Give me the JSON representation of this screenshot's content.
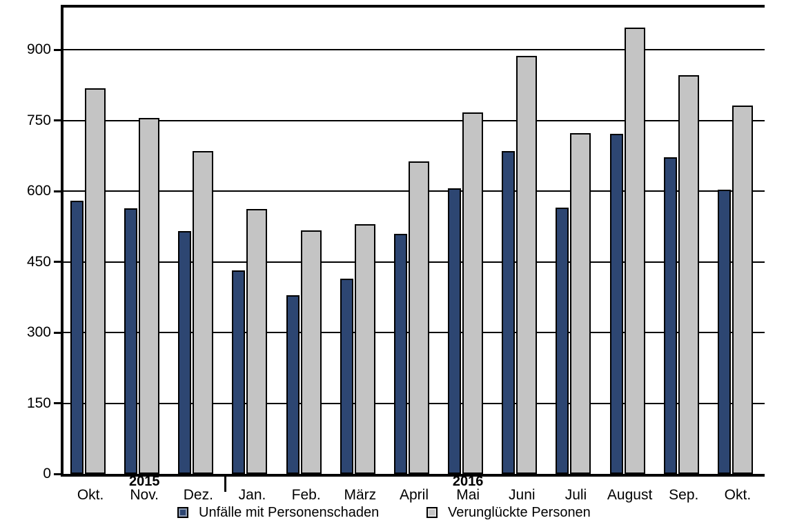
{
  "chart_data": {
    "type": "bar",
    "title": "",
    "xlabel": "",
    "ylabel": "",
    "categories": [
      "Okt.",
      "Nov.",
      "Dez.",
      "Jan.",
      "Feb.",
      "März",
      "April",
      "Mai",
      "Juni",
      "Juli",
      "August",
      "Sep.",
      "Okt."
    ],
    "series": [
      {
        "name": "Unfälle mit Personenschaden",
        "color": "#2d4672",
        "values": [
          580,
          564,
          516,
          432,
          379,
          414,
          509,
          606,
          686,
          565,
          722,
          672,
          603
        ]
      },
      {
        "name": "Verunglückte Personen",
        "color": "#c4c4c4",
        "values": [
          818,
          755,
          686,
          563,
          517,
          530,
          664,
          768,
          887,
          723,
          947,
          847,
          782
        ]
      }
    ],
    "ylim": [
      0,
      990
    ],
    "yticks": [
      0,
      150,
      300,
      450,
      600,
      750,
      900
    ],
    "grid": true,
    "legend_position": "bottom",
    "year_labels": [
      {
        "text": "2015",
        "month_index": 1
      },
      {
        "text": "2016",
        "month_index": 7
      }
    ],
    "year_separator_after_index": 2
  }
}
